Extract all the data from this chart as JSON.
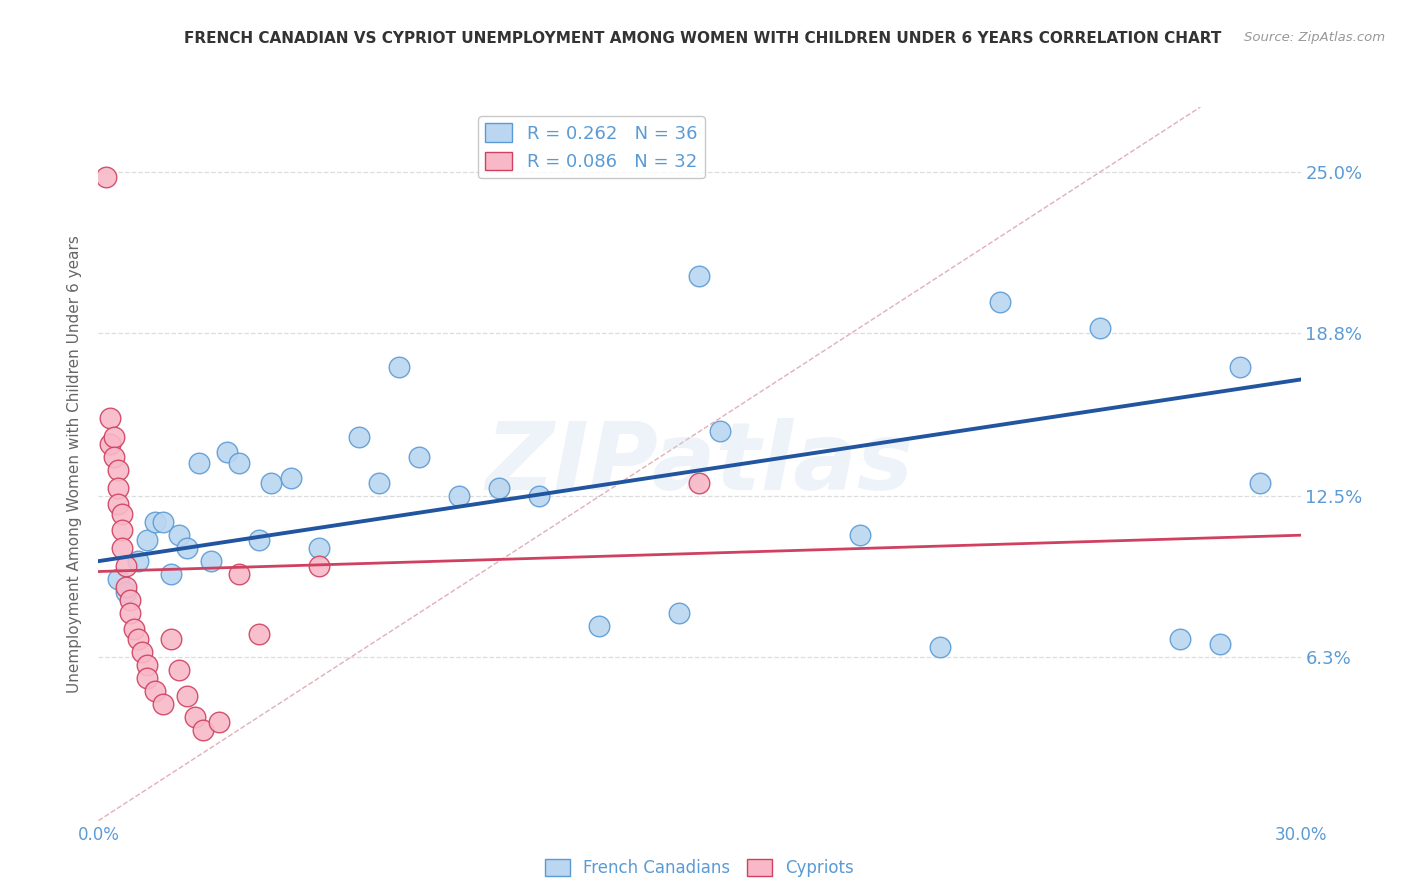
{
  "title": "FRENCH CANADIAN VS CYPRIOT UNEMPLOYMENT AMONG WOMEN WITH CHILDREN UNDER 6 YEARS CORRELATION CHART",
  "source": "Source: ZipAtlas.com",
  "ylabel": "Unemployment Among Women with Children Under 6 years",
  "ytick_labels": [
    "6.3%",
    "12.5%",
    "18.8%",
    "25.0%"
  ],
  "ytick_values": [
    0.063,
    0.125,
    0.188,
    0.25
  ],
  "xlim": [
    0.0,
    0.3
  ],
  "ylim": [
    0.0,
    0.275
  ],
  "background_color": "#ffffff",
  "watermark": "ZIPatlas",
  "french_canadians": {
    "color": "#bad6f0",
    "edge_color": "#5b9bd5",
    "line_color": "#2255a0",
    "trend_y_start": 0.1,
    "trend_y_end": 0.17,
    "x": [
      0.005,
      0.007,
      0.01,
      0.012,
      0.014,
      0.016,
      0.018,
      0.02,
      0.022,
      0.025,
      0.028,
      0.032,
      0.035,
      0.04,
      0.043,
      0.048,
      0.055,
      0.065,
      0.07,
      0.075,
      0.08,
      0.09,
      0.1,
      0.11,
      0.125,
      0.145,
      0.15,
      0.155,
      0.19,
      0.21,
      0.225,
      0.25,
      0.27,
      0.28,
      0.285,
      0.29
    ],
    "y": [
      0.093,
      0.088,
      0.1,
      0.108,
      0.115,
      0.115,
      0.095,
      0.11,
      0.105,
      0.138,
      0.1,
      0.142,
      0.138,
      0.108,
      0.13,
      0.132,
      0.105,
      0.148,
      0.13,
      0.175,
      0.14,
      0.125,
      0.128,
      0.125,
      0.075,
      0.08,
      0.21,
      0.15,
      0.11,
      0.067,
      0.2,
      0.19,
      0.07,
      0.068,
      0.175,
      0.13
    ]
  },
  "cypriots": {
    "color": "#f8b8c8",
    "edge_color": "#d04060",
    "line_color": "#d04060",
    "trend_y_start": 0.096,
    "trend_y_end": 0.11,
    "x": [
      0.002,
      0.003,
      0.003,
      0.004,
      0.004,
      0.005,
      0.005,
      0.005,
      0.006,
      0.006,
      0.006,
      0.007,
      0.007,
      0.008,
      0.008,
      0.009,
      0.01,
      0.011,
      0.012,
      0.012,
      0.014,
      0.016,
      0.018,
      0.02,
      0.022,
      0.024,
      0.026,
      0.03,
      0.035,
      0.04,
      0.055,
      0.15
    ],
    "y": [
      0.248,
      0.155,
      0.145,
      0.148,
      0.14,
      0.135,
      0.128,
      0.122,
      0.118,
      0.112,
      0.105,
      0.098,
      0.09,
      0.085,
      0.08,
      0.074,
      0.07,
      0.065,
      0.06,
      0.055,
      0.05,
      0.045,
      0.07,
      0.058,
      0.048,
      0.04,
      0.035,
      0.038,
      0.095,
      0.072,
      0.098,
      0.13
    ]
  },
  "diagonal_line": {
    "color": "#cccccc",
    "x": [
      0.0,
      0.275
    ],
    "y": [
      0.0,
      0.275
    ]
  },
  "grid_color": "#dddddd",
  "title_color": "#333333",
  "axis_color": "#5b9bd5",
  "source_color": "#999999",
  "watermark_color": "#c8d8ee",
  "watermark_alpha": 0.3,
  "legend1_label": "R = 0.262   N = 36",
  "legend2_label": "R = 0.086   N = 32",
  "bottom_legend1": "French Canadians",
  "bottom_legend2": "Cypriots"
}
